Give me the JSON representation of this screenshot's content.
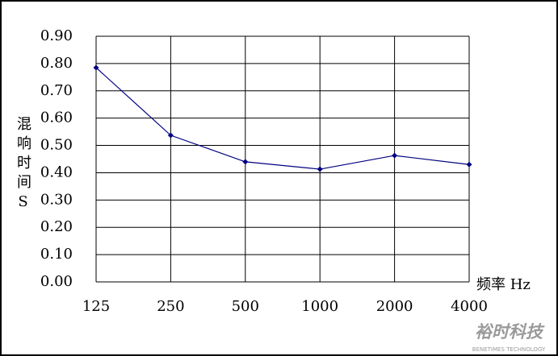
{
  "chart_data": {
    "type": "line",
    "y_label": "混响时间S",
    "x_label": "频率 Hz",
    "categories": [
      "125",
      "250",
      "500",
      "1000",
      "2000",
      "4000"
    ],
    "series": [
      {
        "color": "#000080",
        "values": [
          0.785,
          0.537,
          0.44,
          0.413,
          0.463,
          0.43
        ]
      }
    ],
    "ylim": [
      0,
      0.9
    ],
    "yticks": [
      {
        "value": 0,
        "label": "0.00"
      },
      {
        "value": 0.1,
        "label": "0.10"
      },
      {
        "value": 0.2,
        "label": "0.20"
      },
      {
        "value": 0.3,
        "label": "0.30"
      },
      {
        "value": 0.4,
        "label": "0.40"
      },
      {
        "value": 0.5,
        "label": "0.50"
      },
      {
        "value": 0.6,
        "label": "0.60"
      },
      {
        "value": 0.7,
        "label": "0.70"
      },
      {
        "value": 0.8,
        "label": "0.80"
      },
      {
        "value": 0.9,
        "label": "0.90"
      }
    ],
    "grid": true
  },
  "watermark": {
    "brand": "裕时科技",
    "tagline": "BENETIMES TECHNOLOGY"
  }
}
